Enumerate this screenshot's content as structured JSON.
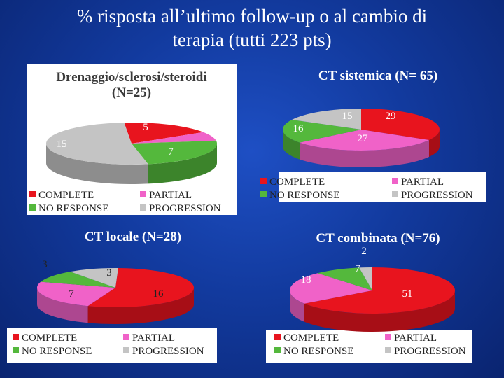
{
  "title": {
    "line1": "% risposta all’ultimo follow-up o al cambio di",
    "line2": "terapia (tutti 223 pts)"
  },
  "colors": {
    "COMPLETE": "#e8141e",
    "PARTIAL": "#f062c8",
    "NO RESPONSE": "#54b83c",
    "PROGRESSION": "#c4c4c4"
  },
  "chart_data": [
    {
      "type": "pie",
      "title": "Drenaggio/sclerosi/steroidi (N=25)",
      "title_lines": [
        "Drenaggio/sclerosi/steroidi",
        "(N=25)"
      ],
      "categories": [
        "COMPLETE",
        "PARTIAL",
        "NO RESPONSE",
        "PROGRESSION"
      ],
      "values": [
        5,
        2,
        7,
        15
      ],
      "labels": [
        "5",
        "2",
        "7",
        "15"
      ],
      "legend": "bottom"
    },
    {
      "type": "pie",
      "title": "CT sistemica (N= 65)",
      "title_lines": [
        "CT  sistemica (N= 65)"
      ],
      "categories": [
        "COMPLETE",
        "PARTIAL",
        "NO RESPONSE",
        "PROGRESSION"
      ],
      "values": [
        29,
        27,
        16,
        15
      ],
      "labels": [
        "29",
        "27",
        "16",
        "15"
      ],
      "legend": "bottom"
    },
    {
      "type": "pie",
      "title": "CT locale (N=28)",
      "title_lines": [
        "CT  locale   (N=28)"
      ],
      "categories": [
        "COMPLETE",
        "PARTIAL",
        "NO RESPONSE",
        "PROGRESSION"
      ],
      "values": [
        16,
        7,
        3,
        3
      ],
      "labels": [
        "16",
        "7",
        "3",
        "3"
      ],
      "legend": "bottom"
    },
    {
      "type": "pie",
      "title": "CT combinata (N=76)",
      "title_lines": [
        "CT combinata (N=76)"
      ],
      "categories": [
        "COMPLETE",
        "PARTIAL",
        "NO RESPONSE",
        "PROGRESSION"
      ],
      "values": [
        51,
        18,
        7,
        2
      ],
      "labels": [
        "51",
        "18",
        "7",
        "2"
      ],
      "legend": "bottom"
    }
  ]
}
